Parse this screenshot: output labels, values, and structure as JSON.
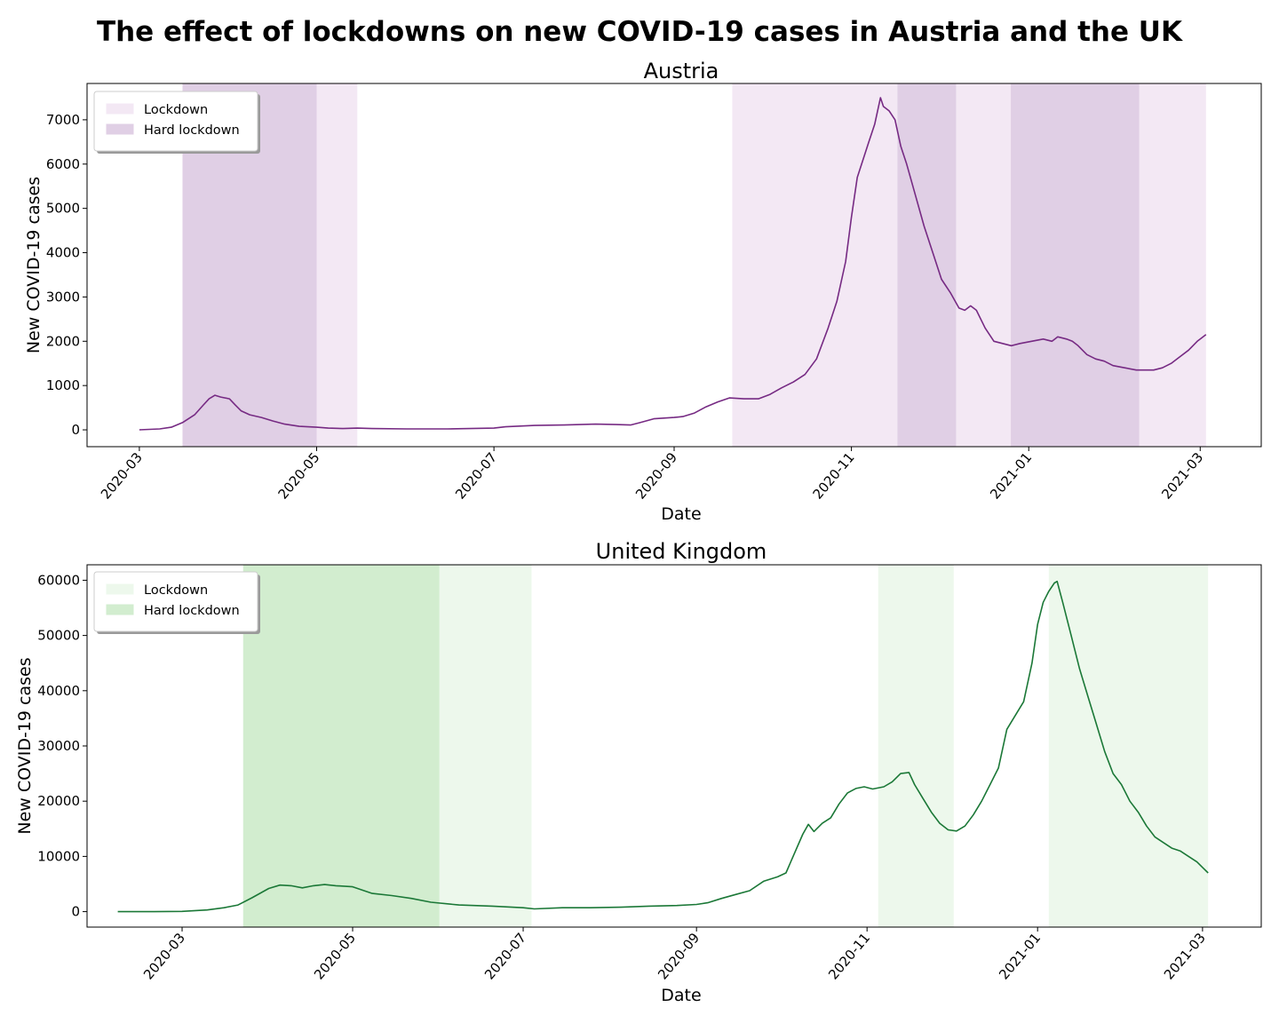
{
  "title": "The effect of lockdowns on new COVID-19 cases in Austria and the UK",
  "chart_data": [
    {
      "type": "line",
      "title": "Austria",
      "xlabel": "Date",
      "ylabel": "New COVID-19 cases",
      "line_color": "#762a83",
      "band_colors": {
        "Lockdown": "#f3e8f4",
        "Hard lockdown": "#e0cfe5"
      },
      "x_ticks": [
        "2020-03",
        "2020-05",
        "2020-07",
        "2020-09",
        "2020-11",
        "2021-01",
        "2021-03"
      ],
      "y_ticks": [
        0,
        1000,
        2000,
        3000,
        4000,
        5000,
        6000,
        7000
      ],
      "xlim": [
        "2020-02-12",
        "2021-03-22"
      ],
      "ylim": [
        -380,
        7820
      ],
      "legend": {
        "position": "upper left",
        "entries": [
          "Lockdown",
          "Hard lockdown"
        ]
      },
      "bands": [
        {
          "type": "Hard lockdown",
          "start": "2020-03-16",
          "end": "2020-05-01"
        },
        {
          "type": "Lockdown",
          "start": "2020-05-01",
          "end": "2020-05-15"
        },
        {
          "type": "Lockdown",
          "start": "2020-09-21",
          "end": "2020-11-17"
        },
        {
          "type": "Hard lockdown",
          "start": "2020-11-17",
          "end": "2020-12-07"
        },
        {
          "type": "Lockdown",
          "start": "2020-12-07",
          "end": "2020-12-26"
        },
        {
          "type": "Hard lockdown",
          "start": "2020-12-26",
          "end": "2021-02-08"
        },
        {
          "type": "Lockdown",
          "start": "2021-02-08",
          "end": "2021-03-03"
        }
      ],
      "series": [
        {
          "x": [
            "2020-03-01",
            "2020-03-08",
            "2020-03-12",
            "2020-03-16",
            "2020-03-20",
            "2020-03-23",
            "2020-03-25",
            "2020-03-27",
            "2020-03-29",
            "2020-04-01",
            "2020-04-03",
            "2020-04-05",
            "2020-04-08",
            "2020-04-12",
            "2020-04-16",
            "2020-04-20",
            "2020-04-25",
            "2020-05-01",
            "2020-05-05",
            "2020-05-10",
            "2020-05-15",
            "2020-05-20",
            "2020-06-01",
            "2020-06-15",
            "2020-07-01",
            "2020-07-05",
            "2020-07-15",
            "2020-07-25",
            "2020-08-05",
            "2020-08-12",
            "2020-08-17",
            "2020-08-20",
            "2020-08-25",
            "2020-09-01",
            "2020-09-04",
            "2020-09-08",
            "2020-09-12",
            "2020-09-16",
            "2020-09-20",
            "2020-09-25",
            "2020-09-30",
            "2020-10-04",
            "2020-10-08",
            "2020-10-12",
            "2020-10-16",
            "2020-10-20",
            "2020-10-24",
            "2020-10-27",
            "2020-10-30",
            "2020-11-01",
            "2020-11-03",
            "2020-11-05",
            "2020-11-07",
            "2020-11-09",
            "2020-11-11",
            "2020-11-12",
            "2020-11-14",
            "2020-11-16",
            "2020-11-18",
            "2020-11-20",
            "2020-11-23",
            "2020-11-26",
            "2020-11-29",
            "2020-12-02",
            "2020-12-05",
            "2020-12-08",
            "2020-12-10",
            "2020-12-12",
            "2020-12-14",
            "2020-12-17",
            "2020-12-20",
            "2020-12-23",
            "2020-12-26",
            "2020-12-29",
            "2021-01-02",
            "2021-01-06",
            "2021-01-09",
            "2021-01-11",
            "2021-01-14",
            "2021-01-16",
            "2021-01-18",
            "2021-01-21",
            "2021-01-24",
            "2021-01-27",
            "2021-01-30",
            "2021-02-03",
            "2021-02-07",
            "2021-02-10",
            "2021-02-13",
            "2021-02-16",
            "2021-02-19",
            "2021-02-22",
            "2021-02-25",
            "2021-02-28",
            "2021-03-03"
          ],
          "y": [
            0,
            20,
            60,
            170,
            340,
            560,
            700,
            780,
            740,
            700,
            560,
            430,
            340,
            280,
            200,
            130,
            80,
            60,
            40,
            30,
            40,
            30,
            20,
            20,
            40,
            70,
            100,
            110,
            130,
            120,
            110,
            160,
            250,
            280,
            300,
            380,
            520,
            630,
            720,
            700,
            700,
            800,
            950,
            1080,
            1250,
            1600,
            2300,
            2900,
            3800,
            4800,
            5700,
            6100,
            6500,
            6900,
            7500,
            7300,
            7200,
            7000,
            6400,
            6000,
            5300,
            4600,
            4000,
            3400,
            3100,
            2750,
            2700,
            2800,
            2700,
            2300,
            2000,
            1950,
            1900,
            1950,
            2000,
            2050,
            2000,
            2100,
            2050,
            2000,
            1900,
            1700,
            1600,
            1550,
            1450,
            1400,
            1350,
            1350,
            1350,
            1400,
            1500,
            1650,
            1800,
            2000,
            2150
          ]
        }
      ]
    },
    {
      "type": "line",
      "title": "United Kingdom",
      "xlabel": "Date",
      "ylabel": "New COVID-19 cases",
      "line_color": "#1b7837",
      "band_colors": {
        "Lockdown": "#edf8ec",
        "Hard lockdown": "#d2edcf"
      },
      "x_ticks": [
        "2020-03",
        "2020-05",
        "2020-07",
        "2020-09",
        "2020-11",
        "2021-01",
        "2021-03"
      ],
      "y_ticks": [
        0,
        10000,
        20000,
        30000,
        40000,
        50000,
        60000
      ],
      "xlim": [
        "2020-01-27",
        "2021-03-22"
      ],
      "ylim": [
        -2800,
        62800
      ],
      "legend": {
        "position": "upper left",
        "entries": [
          "Lockdown",
          "Hard lockdown"
        ]
      },
      "bands": [
        {
          "type": "Hard lockdown",
          "start": "2020-03-23",
          "end": "2020-06-01"
        },
        {
          "type": "Lockdown",
          "start": "2020-06-01",
          "end": "2020-07-04"
        },
        {
          "type": "Lockdown",
          "start": "2020-11-05",
          "end": "2020-12-02"
        },
        {
          "type": "Lockdown",
          "start": "2021-01-05",
          "end": "2021-03-03"
        }
      ],
      "series": [
        {
          "x": [
            "2020-02-07",
            "2020-02-20",
            "2020-03-01",
            "2020-03-10",
            "2020-03-16",
            "2020-03-21",
            "2020-03-26",
            "2020-04-01",
            "2020-04-05",
            "2020-04-09",
            "2020-04-13",
            "2020-04-17",
            "2020-04-21",
            "2020-04-25",
            "2020-05-01",
            "2020-05-08",
            "2020-05-15",
            "2020-05-22",
            "2020-05-29",
            "2020-06-08",
            "2020-06-20",
            "2020-07-01",
            "2020-07-05",
            "2020-07-15",
            "2020-07-25",
            "2020-08-05",
            "2020-08-15",
            "2020-08-25",
            "2020-09-01",
            "2020-09-05",
            "2020-09-10",
            "2020-09-15",
            "2020-09-20",
            "2020-09-25",
            "2020-09-30",
            "2020-10-03",
            "2020-10-06",
            "2020-10-09",
            "2020-10-11",
            "2020-10-13",
            "2020-10-16",
            "2020-10-19",
            "2020-10-22",
            "2020-10-25",
            "2020-10-28",
            "2020-10-31",
            "2020-11-03",
            "2020-11-07",
            "2020-11-10",
            "2020-11-13",
            "2020-11-16",
            "2020-11-18",
            "2020-11-21",
            "2020-11-24",
            "2020-11-27",
            "2020-11-30",
            "2020-12-03",
            "2020-12-06",
            "2020-12-09",
            "2020-12-12",
            "2020-12-15",
            "2020-12-18",
            "2020-12-21",
            "2020-12-24",
            "2020-12-27",
            "2020-12-30",
            "2021-01-01",
            "2021-01-03",
            "2021-01-05",
            "2021-01-07",
            "2021-01-08",
            "2021-01-10",
            "2021-01-13",
            "2021-01-16",
            "2021-01-19",
            "2021-01-22",
            "2021-01-25",
            "2021-01-28",
            "2021-01-31",
            "2021-02-03",
            "2021-02-06",
            "2021-02-09",
            "2021-02-12",
            "2021-02-15",
            "2021-02-18",
            "2021-02-21",
            "2021-02-24",
            "2021-02-27",
            "2021-03-01",
            "2021-03-03"
          ],
          "y": [
            0,
            0,
            50,
            300,
            700,
            1200,
            2500,
            4200,
            4800,
            4700,
            4300,
            4700,
            4900,
            4700,
            4500,
            3300,
            2900,
            2400,
            1700,
            1200,
            1000,
            700,
            500,
            700,
            700,
            800,
            1000,
            1100,
            1300,
            1600,
            2400,
            3100,
            3800,
            5500,
            6300,
            7000,
            10500,
            14000,
            15800,
            14500,
            16000,
            17000,
            19500,
            21500,
            22300,
            22600,
            22200,
            22600,
            23500,
            25000,
            25200,
            23000,
            20500,
            18000,
            16000,
            14800,
            14600,
            15500,
            17500,
            20000,
            23000,
            26000,
            33000,
            35500,
            38000,
            45000,
            52000,
            56000,
            58000,
            59500,
            59800,
            56000,
            50000,
            44000,
            39000,
            34000,
            29000,
            25000,
            23000,
            20000,
            18000,
            15500,
            13500,
            12500,
            11500,
            11000,
            10000,
            9000,
            8000,
            7000
          ]
        }
      ]
    }
  ]
}
